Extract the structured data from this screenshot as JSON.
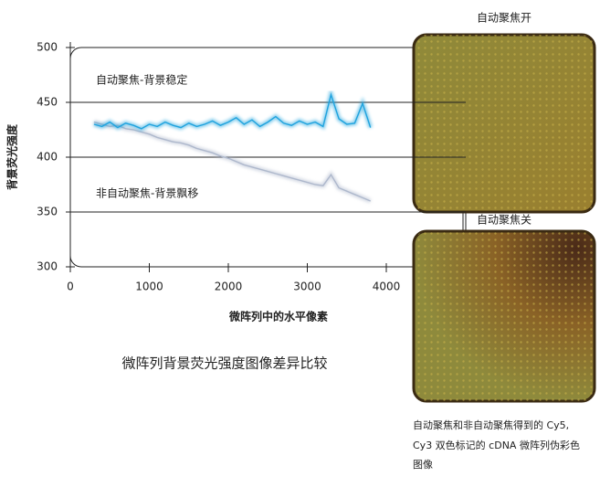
{
  "chart_data": {
    "type": "line",
    "annotations": [
      "自动聚焦-背景稳定",
      "非自动聚焦-背景飘移"
    ],
    "y_label": "背景荧光强度",
    "x_label": "微阵列中的水平像素",
    "caption": "微阵列背景荧光强度图像差异比较",
    "x": [
      300,
      400,
      500,
      600,
      700,
      800,
      900,
      1000,
      1100,
      1200,
      1300,
      1400,
      1500,
      1600,
      1700,
      1800,
      1900,
      2000,
      2100,
      2200,
      2300,
      2400,
      2500,
      2600,
      2700,
      2800,
      2900,
      3000,
      3100,
      3200,
      3300,
      3400,
      3500,
      3600,
      3700,
      3800
    ],
    "series": [
      {
        "color": "#1fa3de",
        "values": [
          430,
          428,
          432,
          427,
          431,
          429,
          426,
          430,
          428,
          432,
          429,
          427,
          431,
          428,
          430,
          433,
          429,
          432,
          436,
          430,
          434,
          428,
          432,
          437,
          431,
          429,
          433,
          430,
          432,
          428,
          457,
          435,
          430,
          431,
          449,
          427
        ]
      },
      {
        "color": "#aeb8cc",
        "values": [
          432,
          430,
          428,
          429,
          426,
          425,
          423,
          421,
          418,
          416,
          414,
          413,
          411,
          408,
          406,
          404,
          401,
          399,
          396,
          393,
          391,
          389,
          387,
          385,
          383,
          381,
          379,
          377,
          375,
          374,
          384,
          372,
          369,
          366,
          363,
          360
        ]
      }
    ],
    "xlim": [
      0,
      4000
    ],
    "xticks": [
      0,
      1000,
      2000,
      3000,
      4000
    ],
    "ylim": [
      300,
      500
    ],
    "yticks": [
      300,
      350,
      400,
      450,
      500
    ],
    "grid": true
  },
  "images": [
    {
      "title": "自动聚焦开"
    },
    {
      "title": "自动聚焦关"
    }
  ],
  "image_caption": [
    "自动聚焦和非自动聚焦得到的 Cy5,",
    "Cy3 双色标记的 cDNA 微阵列伪彩色",
    "图像"
  ]
}
